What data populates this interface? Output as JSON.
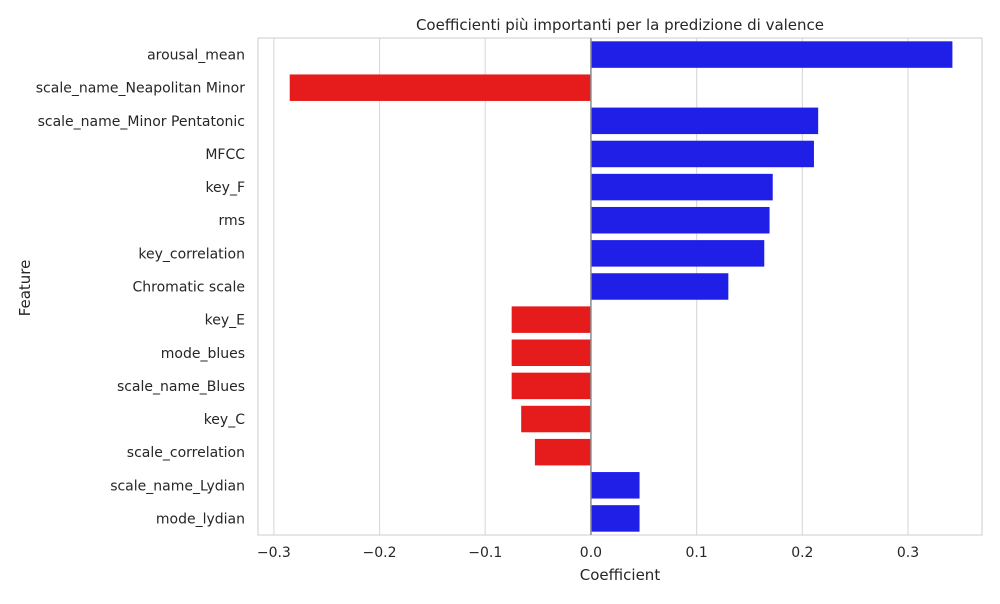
{
  "chart_data": {
    "type": "bar",
    "orientation": "horizontal",
    "title": "Coefficienti più importanti per la predizione di valence",
    "xlabel": "Coefficient",
    "ylabel": "Feature",
    "xlim": [
      -0.315,
      0.37
    ],
    "xticks": [
      -0.3,
      -0.2,
      -0.1,
      0.0,
      0.1,
      0.2,
      0.3
    ],
    "xtick_labels": [
      "−0.3",
      "−0.2",
      "−0.1",
      "0.0",
      "0.1",
      "0.2",
      "0.3"
    ],
    "grid": true,
    "colors": {
      "positive": "#1f1fe8",
      "negative": "#e61c1c",
      "grid": "#dcdcdc",
      "zero_line": "#8c8c8c",
      "frame": "#cccccc"
    },
    "categories": [
      "arousal_mean",
      "scale_name_Neapolitan Minor",
      "scale_name_Minor Pentatonic",
      "MFCC",
      "key_F",
      "rms",
      "key_correlation",
      "Chromatic scale",
      "key_E",
      "mode_blues",
      "scale_name_Blues",
      "key_C",
      "scale_correlation",
      "scale_name_Lydian",
      "mode_lydian"
    ],
    "values": [
      0.342,
      -0.285,
      0.215,
      0.211,
      0.172,
      0.169,
      0.164,
      0.13,
      -0.075,
      -0.075,
      -0.075,
      -0.066,
      -0.053,
      0.046,
      0.046
    ]
  }
}
